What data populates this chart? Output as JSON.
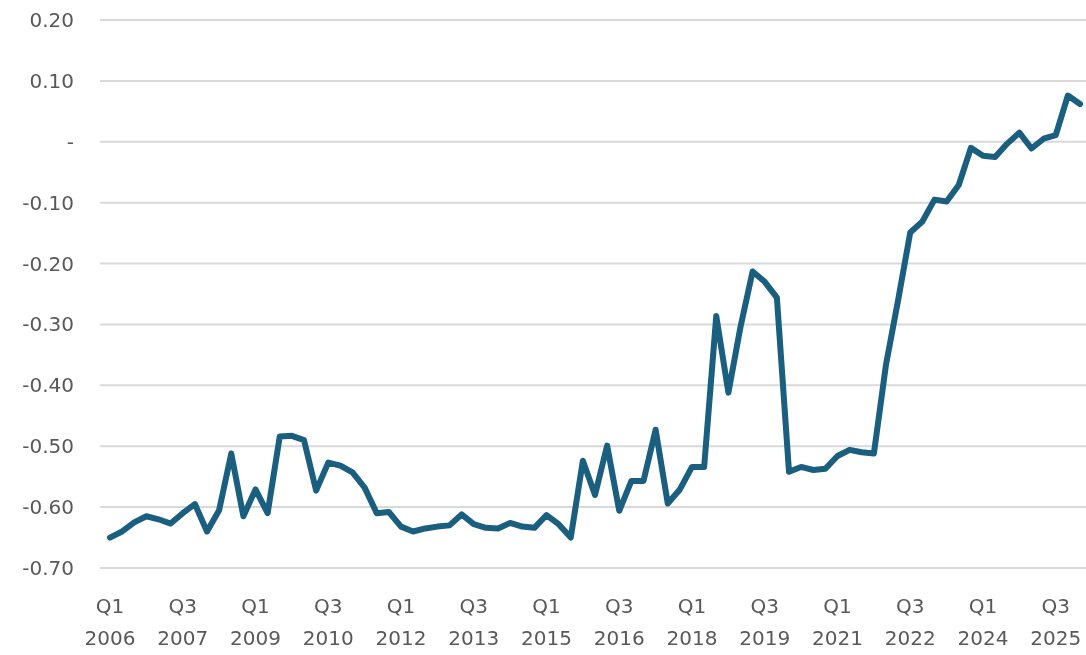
{
  "chart_data": {
    "type": "line",
    "categories": [
      "Q1 2006",
      null,
      null,
      null,
      null,
      null,
      "Q3 2007",
      null,
      null,
      null,
      null,
      null,
      "Q1 2009",
      null,
      null,
      null,
      null,
      null,
      "Q3 2010",
      null,
      null,
      null,
      null,
      null,
      "Q1 2012",
      null,
      null,
      null,
      null,
      null,
      "Q3 2013",
      null,
      null,
      null,
      null,
      null,
      "Q1 2015",
      null,
      null,
      null,
      null,
      null,
      "Q3 2016",
      null,
      null,
      null,
      null,
      null,
      "Q1 2018",
      null,
      null,
      null,
      null,
      null,
      "Q3 2019",
      null,
      null,
      null,
      null,
      null,
      "Q1 2021",
      null,
      null,
      null,
      null,
      null,
      "Q3 2022",
      null,
      null,
      null,
      null,
      null,
      "Q1 2024",
      null,
      null,
      null,
      null,
      null,
      "Q3 2025",
      null,
      null
    ],
    "series": [
      {
        "color": "#1a5f80",
        "values": [
          -0.65,
          -0.64,
          -0.625,
          -0.615,
          -0.62,
          -0.627,
          -0.61,
          -0.595,
          -0.64,
          -0.605,
          -0.512,
          -0.615,
          -0.571,
          -0.61,
          -0.484,
          -0.483,
          -0.49,
          -0.573,
          -0.527,
          -0.532,
          -0.543,
          -0.568,
          -0.61,
          -0.608,
          -0.632,
          -0.64,
          -0.635,
          -0.632,
          -0.63,
          -0.612,
          -0.628,
          -0.634,
          -0.635,
          -0.626,
          -0.632,
          -0.634,
          -0.613,
          -0.628,
          -0.65,
          -0.524,
          -0.58,
          -0.499,
          -0.606,
          -0.557,
          -0.557,
          -0.473,
          -0.594,
          -0.571,
          -0.534,
          -0.534,
          -0.286,
          -0.412,
          -0.304,
          -0.213,
          -0.23,
          -0.256,
          -0.542,
          -0.534,
          -0.539,
          -0.537,
          -0.516,
          -0.506,
          -0.51,
          -0.512,
          -0.366,
          -0.26,
          -0.149,
          -0.131,
          -0.095,
          -0.098,
          -0.071,
          -0.01,
          -0.023,
          -0.025,
          -0.003,
          0.015,
          -0.011,
          0.005,
          0.011,
          0.076,
          0.062
        ]
      }
    ],
    "ylim": [
      -0.7,
      0.2
    ],
    "yticks": [
      {
        "value": 0.2,
        "label": "0.20"
      },
      {
        "value": 0.1,
        "label": "0.10"
      },
      {
        "value": 0,
        "label": "-"
      },
      {
        "value": -0.1,
        "label": "-0.10"
      },
      {
        "value": -0.2,
        "label": "-0.20"
      },
      {
        "value": -0.3,
        "label": "-0.30"
      },
      {
        "value": -0.4,
        "label": "-0.40"
      },
      {
        "value": -0.5,
        "label": "-0.50"
      },
      {
        "value": -0.6,
        "label": "-0.60"
      },
      {
        "value": -0.7,
        "label": "-0.70"
      }
    ],
    "grid": "y",
    "marker": "none",
    "line_style": "solid"
  }
}
